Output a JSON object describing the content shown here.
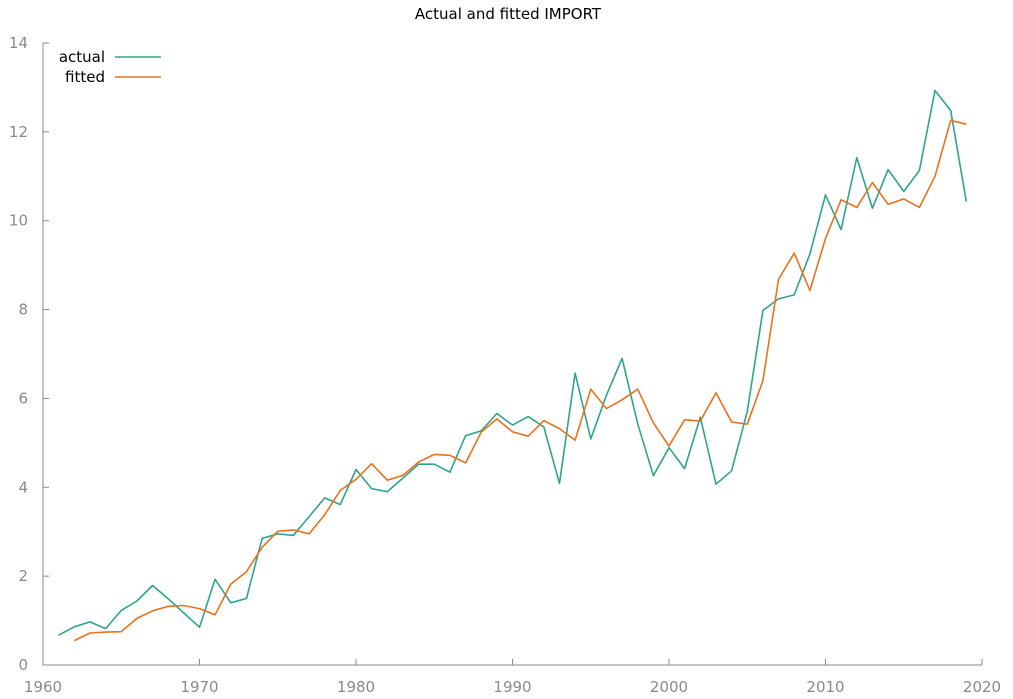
{
  "chart_data": {
    "type": "line",
    "title": "Actual and fitted IMPORT",
    "xlabel": "",
    "ylabel": "",
    "xlim": [
      1960,
      2020
    ],
    "ylim": [
      0,
      14
    ],
    "x_ticks": [
      1960,
      1970,
      1980,
      1990,
      2000,
      2010,
      2020
    ],
    "y_ticks": [
      0,
      2,
      4,
      6,
      8,
      10,
      12,
      14
    ],
    "grid": false,
    "legend_position": "top-left",
    "series": [
      {
        "name": "actual",
        "color": "#2ca58d",
        "x": [
          1961,
          1962,
          1963,
          1964,
          1965,
          1966,
          1967,
          1968,
          1969,
          1970,
          1971,
          1972,
          1973,
          1974,
          1975,
          1976,
          1977,
          1978,
          1979,
          1980,
          1981,
          1982,
          1983,
          1984,
          1985,
          1986,
          1987,
          1988,
          1989,
          1990,
          1991,
          1992,
          1993,
          1994,
          1995,
          1996,
          1997,
          1998,
          1999,
          2000,
          2001,
          2002,
          2003,
          2004,
          2005,
          2006,
          2007,
          2008,
          2009,
          2010,
          2011,
          2012,
          2013,
          2014,
          2015,
          2016,
          2017,
          2018,
          2019
        ],
        "values": [
          0.67,
          0.86,
          0.97,
          0.82,
          1.23,
          1.44,
          1.79,
          1.49,
          1.17,
          0.85,
          1.93,
          1.4,
          1.5,
          2.85,
          2.95,
          2.92,
          3.34,
          3.76,
          3.61,
          4.4,
          3.97,
          3.9,
          4.21,
          4.52,
          4.52,
          4.34,
          5.16,
          5.27,
          5.66,
          5.4,
          5.59,
          5.36,
          4.09,
          6.57,
          5.09,
          6.07,
          6.9,
          5.43,
          4.26,
          4.89,
          4.42,
          5.58,
          4.07,
          4.37,
          5.71,
          7.98,
          8.24,
          8.33,
          9.25,
          10.58,
          9.8,
          11.42,
          10.28,
          11.15,
          10.66,
          11.13,
          12.93,
          12.48,
          10.43
        ]
      },
      {
        "name": "fitted",
        "color": "#e9711c",
        "x": [
          1962,
          1963,
          1964,
          1965,
          1966,
          1967,
          1968,
          1969,
          1970,
          1971,
          1972,
          1973,
          1974,
          1975,
          1976,
          1977,
          1978,
          1979,
          1980,
          1981,
          1982,
          1983,
          1984,
          1985,
          1986,
          1987,
          1988,
          1989,
          1990,
          1991,
          1992,
          1993,
          1994,
          1995,
          1996,
          1997,
          1998,
          1999,
          2000,
          2001,
          2002,
          2003,
          2004,
          2005,
          2006,
          2007,
          2008,
          2009,
          2010,
          2011,
          2012,
          2013,
          2014,
          2015,
          2016,
          2017,
          2018,
          2019
        ],
        "values": [
          0.55,
          0.72,
          0.74,
          0.75,
          1.05,
          1.22,
          1.32,
          1.34,
          1.27,
          1.13,
          1.82,
          2.1,
          2.65,
          3.01,
          3.04,
          2.95,
          3.38,
          3.93,
          4.18,
          4.53,
          4.16,
          4.27,
          4.57,
          4.74,
          4.72,
          4.55,
          5.24,
          5.54,
          5.25,
          5.15,
          5.5,
          5.32,
          5.06,
          6.21,
          5.77,
          5.97,
          6.21,
          5.45,
          4.93,
          5.52,
          5.49,
          6.13,
          5.47,
          5.42,
          6.4,
          8.68,
          9.27,
          8.43,
          9.6,
          10.47,
          10.3,
          10.86,
          10.37,
          10.49,
          10.3,
          11.0,
          12.26,
          12.17
        ]
      }
    ]
  }
}
